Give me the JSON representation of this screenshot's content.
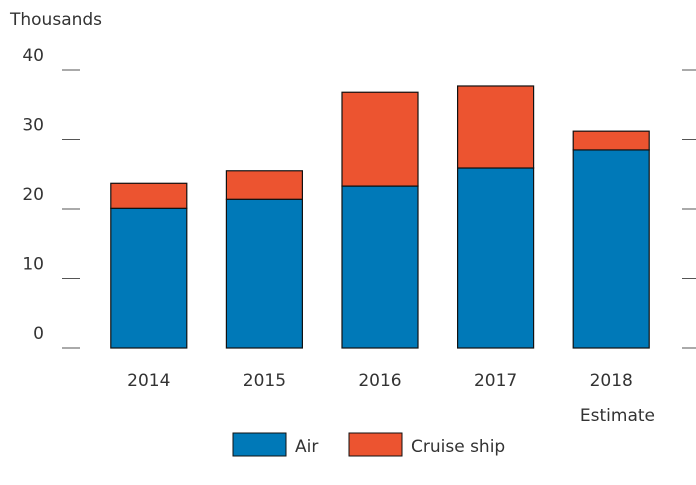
{
  "chart_data": {
    "type": "stacked_bar",
    "y_label": "Thousands",
    "categories": [
      "2014",
      "2015",
      "2016",
      "2017",
      "2018"
    ],
    "series": [
      {
        "name": "Air",
        "color": "#0079b8",
        "values": [
          20.1,
          21.4,
          23.3,
          25.9,
          28.5
        ]
      },
      {
        "name": "Cruise ship",
        "color": "#ec5430",
        "values": [
          3.6,
          4.1,
          13.5,
          11.8,
          2.7
        ]
      }
    ],
    "ylim": [
      0,
      40
    ],
    "yticks": [
      0,
      10,
      20,
      30,
      40
    ],
    "annotation": "Estimate",
    "legend": "bottom"
  }
}
